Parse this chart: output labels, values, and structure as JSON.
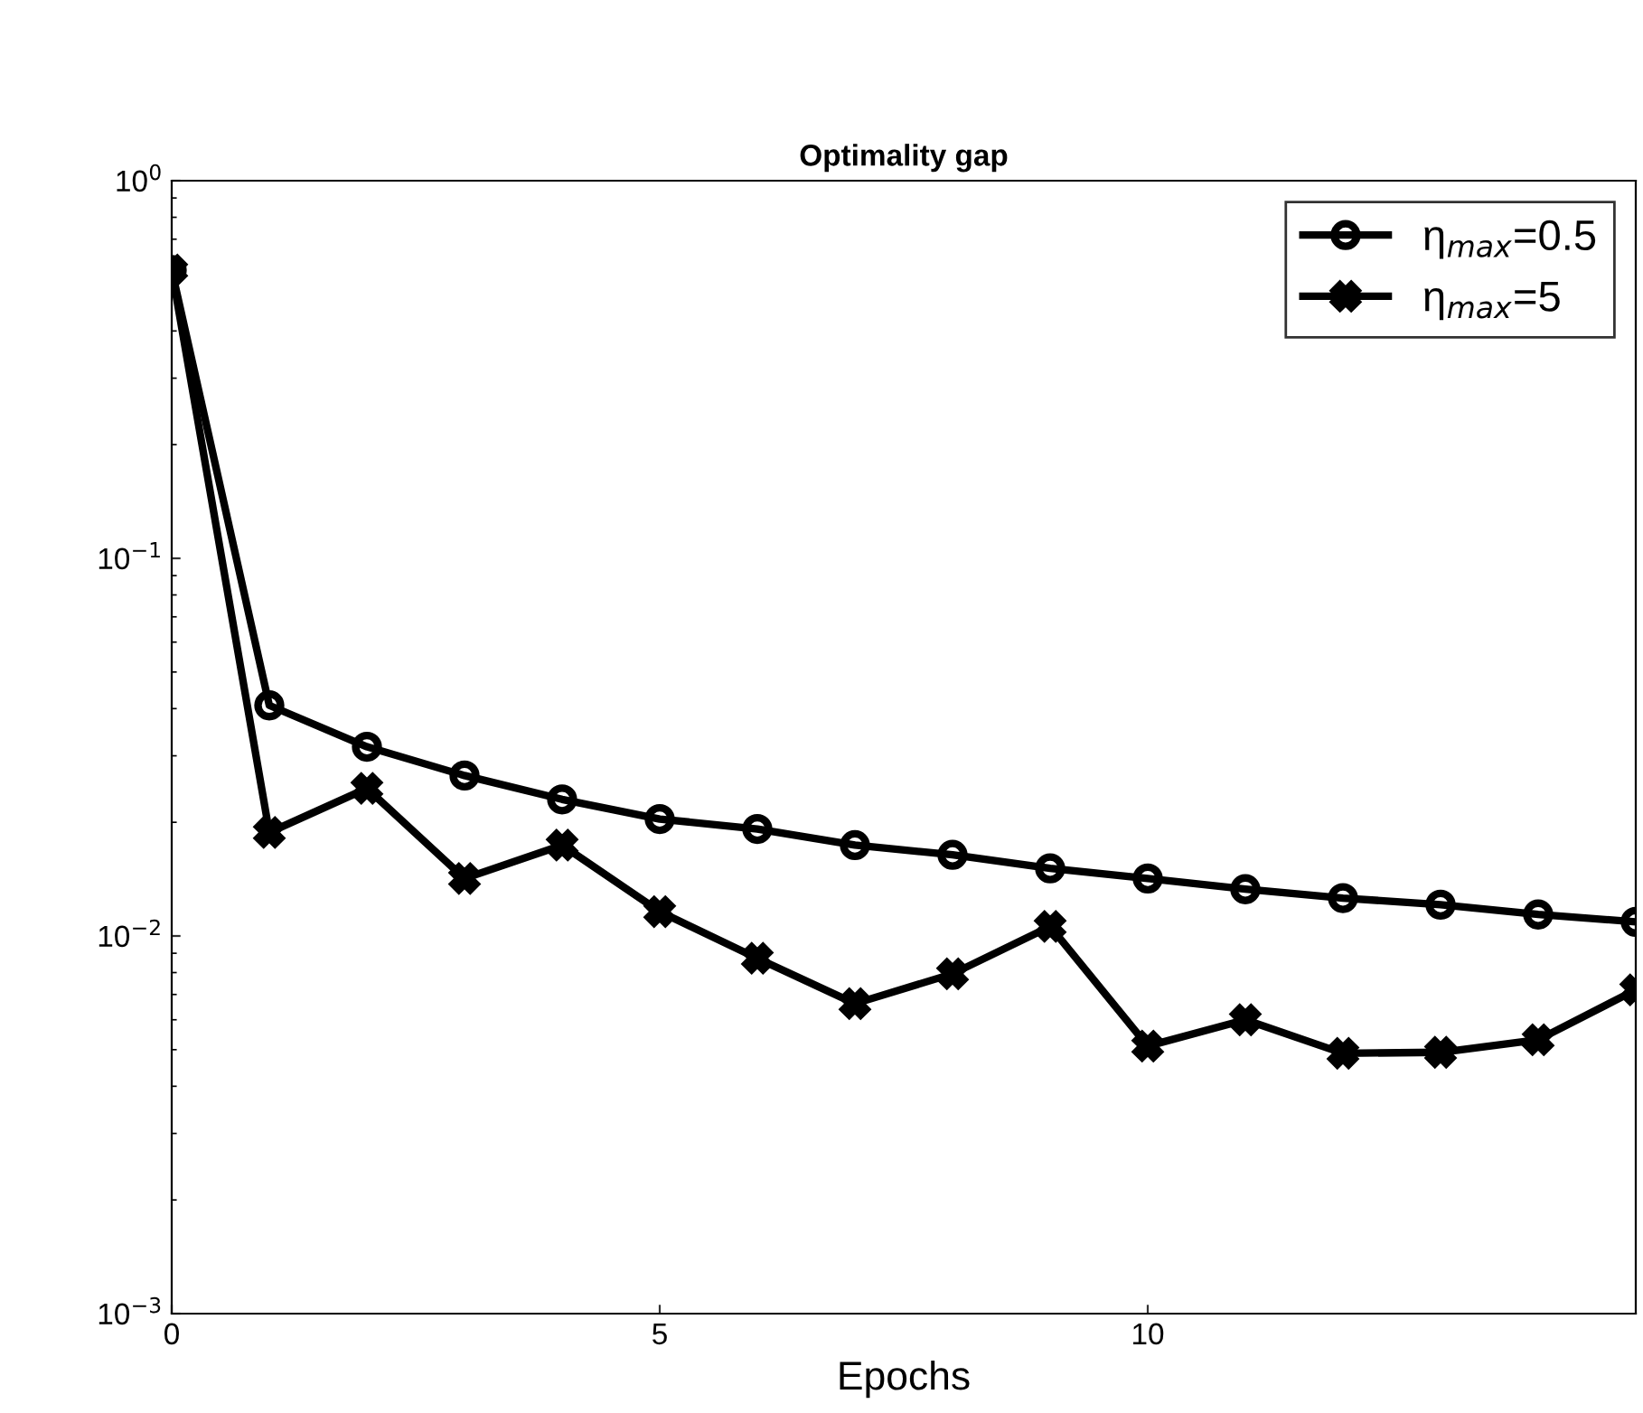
{
  "chart_data": {
    "type": "line",
    "title": "Optimality gap",
    "xlabel": "Epochs",
    "x": [
      0,
      1,
      2,
      3,
      4,
      5,
      6,
      7,
      8,
      9,
      10,
      11,
      12,
      13,
      14,
      15
    ],
    "series": [
      {
        "name": "η$_{max}$=0.5",
        "color": "#000000",
        "marker": "circle",
        "values": [
          0.58,
          0.0408,
          0.0317,
          0.0266,
          0.023,
          0.0204,
          0.0192,
          0.0174,
          0.0164,
          0.0151,
          0.0142,
          0.0133,
          0.0126,
          0.0121,
          0.0114,
          0.0109
        ]
      },
      {
        "name": "η$_{max}$=5",
        "color": "#000000",
        "marker": "cross",
        "values": [
          0.58,
          0.0188,
          0.0246,
          0.0142,
          0.0174,
          0.0116,
          0.00873,
          0.00662,
          0.00794,
          0.0106,
          0.00511,
          0.006,
          0.00489,
          0.00492,
          0.00531,
          0.0072
        ]
      }
    ],
    "log": "y",
    "xlim": [
      0,
      15
    ],
    "ylim": [
      0.001,
      1
    ],
    "xticks": [
      0,
      5,
      10
    ],
    "yticks": [
      {
        "value": 0.001,
        "label": "10$^{−3}$"
      },
      {
        "value": 0.01,
        "label": "10$^{−2}$"
      },
      {
        "value": 0.1,
        "label": "10$^{−1}$"
      },
      {
        "value": 1,
        "label": "10$^{0}$"
      }
    ],
    "grid": false,
    "legend": "top right",
    "line_style": "solid"
  }
}
